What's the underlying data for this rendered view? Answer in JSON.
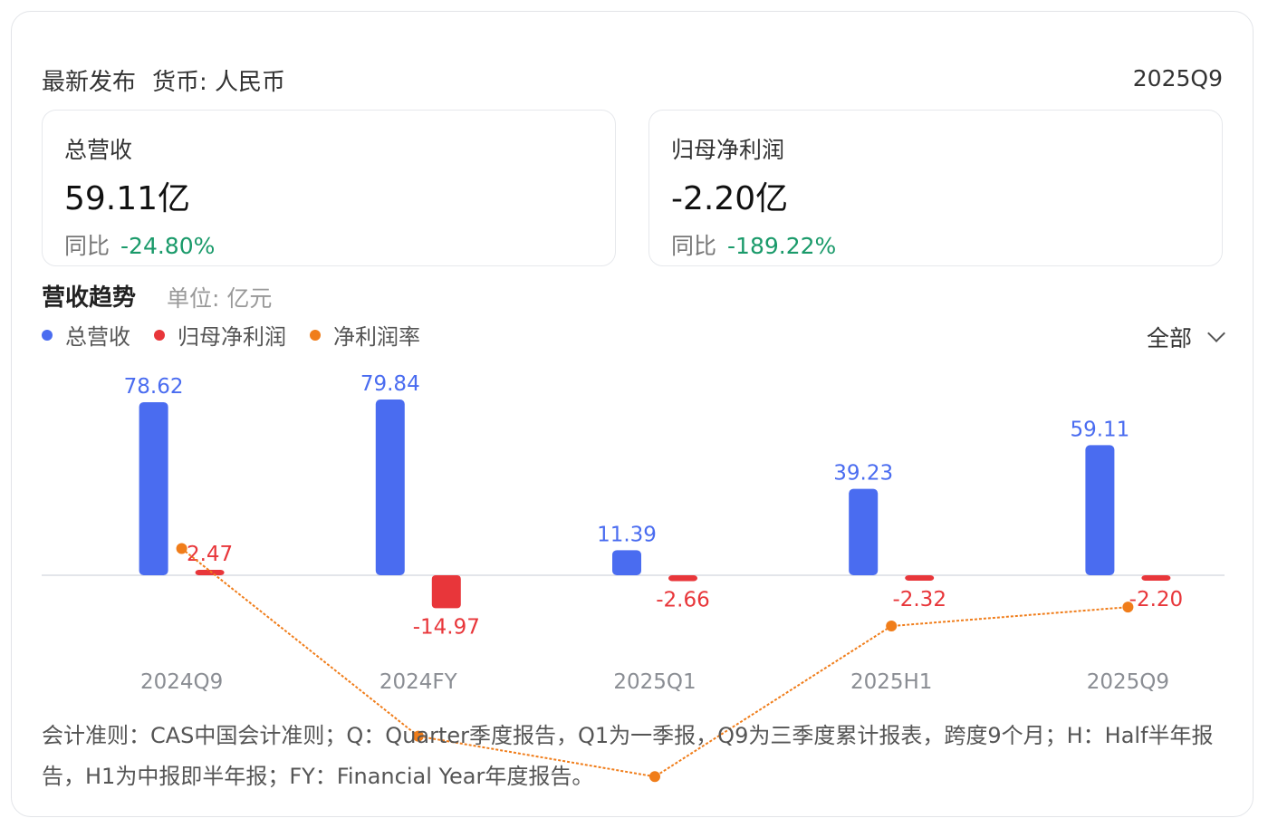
{
  "header": {
    "title": "最新发布",
    "currency": "货币: 人民币",
    "period": "2025Q9"
  },
  "metrics": [
    {
      "label": "总营收",
      "value": "59.11亿",
      "yoy_label": "同比",
      "yoy_value": "-24.80%"
    },
    {
      "label": "归母净利润",
      "value": "-2.20亿",
      "yoy_label": "同比",
      "yoy_value": "-189.22%"
    }
  ],
  "section": {
    "title": "营收趋势",
    "unit": "单位: 亿元"
  },
  "filter": {
    "label": "全部"
  },
  "colors": {
    "revenue": "#4a6cf0",
    "profit": "#e8363a",
    "margin": "#f07d1a",
    "positive_change": "#1a9a6a"
  },
  "chart_data": {
    "type": "bar",
    "categories": [
      "2024Q9",
      "2024FY",
      "2025Q1",
      "2025H1",
      "2025Q9"
    ],
    "series": [
      {
        "name": "总营收",
        "type": "bar",
        "values": [
          78.62,
          79.84,
          11.39,
          39.23,
          59.11
        ],
        "labels": [
          "78.62",
          "79.84",
          "11.39",
          "39.23",
          "59.11"
        ]
      },
      {
        "name": "归母净利润",
        "type": "bar",
        "values": [
          2.47,
          -14.97,
          -2.66,
          -2.32,
          -2.2
        ],
        "labels": [
          "2.47",
          "-14.97",
          "-2.66",
          "-2.32",
          "-2.20"
        ]
      },
      {
        "name": "净利润率",
        "type": "line",
        "values": [
          3.1,
          -18.7,
          -23.4,
          -5.9,
          -3.7
        ]
      }
    ],
    "ylim": [
      -20,
      80
    ],
    "grid": false,
    "legend": "top-left"
  },
  "note": "会计准则：CAS中国会计准则；Q：Quarter季度报告，Q1为一季报，Q9为三季度累计报表，跨度9个月；H：Half半年报告，H1为中报即半年报；FY：Financial Year年度报告。"
}
